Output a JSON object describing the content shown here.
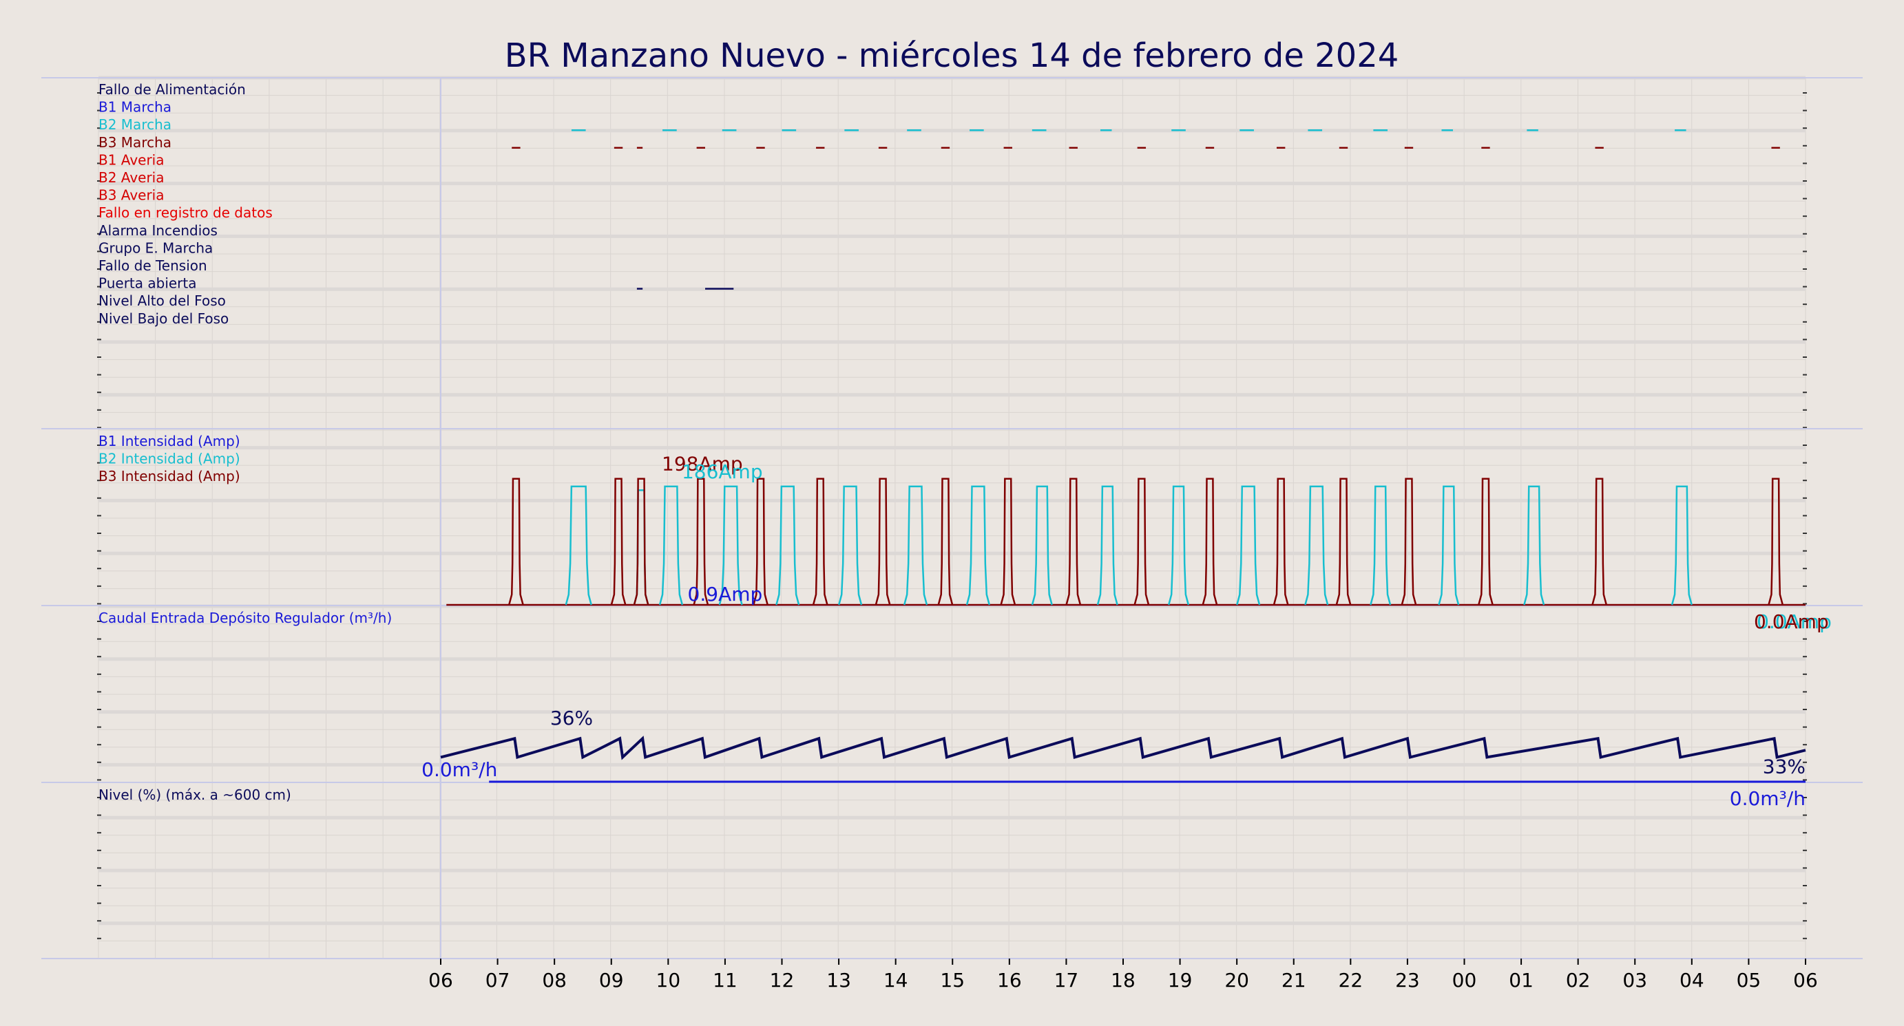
{
  "title": "BR Manzano Nuevo   -   miércoles 14 de febrero de 2024",
  "colors": {
    "background": "#ebe6e1",
    "grid": "#d9d4d0",
    "separator": "#c7c9e8",
    "navy": "#0b0b5a",
    "blue": "#1a1ad8",
    "cyan": "#17becf",
    "dark_red": "#800000",
    "red": "#d40000"
  },
  "chart_data": [
    {
      "panel": "digital_signals",
      "type": "line",
      "legend": [
        {
          "label": "Fallo de Alimentación",
          "color": "#0b0b5a"
        },
        {
          "label": "B1 Marcha",
          "color": "#1a1ad8"
        },
        {
          "label": "B2 Marcha",
          "color": "#17becf"
        },
        {
          "label": "B3 Marcha",
          "color": "#800000"
        },
        {
          "label": "B1 Averia",
          "color": "#d40000"
        },
        {
          "label": "B2 Averia",
          "color": "#d40000"
        },
        {
          "label": "B3 Averia",
          "color": "#d40000"
        },
        {
          "label": "Fallo en registro de datos",
          "color": "#e60000"
        },
        {
          "label": "Alarma Incendios",
          "color": "#0b0b5a"
        },
        {
          "label": "Grupo E. Marcha",
          "color": "#0b0b5a"
        },
        {
          "label": "Fallo de Tension",
          "color": "#0b0b5a"
        },
        {
          "label": "Puerta abierta",
          "color": "#0b0b5a"
        },
        {
          "label": "Nivel Alto del Foso",
          "color": "#0b0b5a"
        },
        {
          "label": "Nivel Bajo del Foso",
          "color": "#0b0b5a"
        }
      ],
      "events": {
        "B2 Marcha": [
          [
            8.3,
            8.55
          ],
          [
            9.9,
            10.15
          ],
          [
            10.95,
            11.2
          ],
          [
            12.0,
            12.25
          ],
          [
            13.1,
            13.35
          ],
          [
            14.2,
            14.45
          ],
          [
            15.3,
            15.55
          ],
          [
            16.4,
            16.65
          ],
          [
            17.6,
            17.8
          ],
          [
            18.85,
            19.1
          ],
          [
            20.05,
            20.3
          ],
          [
            21.25,
            21.5
          ],
          [
            22.4,
            22.65
          ],
          [
            23.6,
            23.8
          ],
          [
            25.1,
            25.3
          ],
          [
            27.7,
            27.9
          ]
        ],
        "B3 Marcha": [
          [
            7.25,
            7.4
          ],
          [
            9.05,
            9.2
          ],
          [
            9.45,
            9.55
          ],
          [
            10.5,
            10.65
          ],
          [
            11.55,
            11.7
          ],
          [
            12.6,
            12.75
          ],
          [
            13.7,
            13.85
          ],
          [
            14.8,
            14.95
          ],
          [
            15.9,
            16.05
          ],
          [
            17.05,
            17.2
          ],
          [
            18.25,
            18.4
          ],
          [
            19.45,
            19.6
          ],
          [
            20.7,
            20.85
          ],
          [
            21.8,
            21.95
          ],
          [
            22.95,
            23.1
          ],
          [
            24.3,
            24.45
          ],
          [
            26.3,
            26.45
          ],
          [
            29.4,
            29.55
          ]
        ],
        "Puerta abierta": [
          [
            9.45,
            9.55
          ],
          [
            10.65,
            11.15
          ]
        ]
      }
    },
    {
      "panel": "intensity",
      "type": "line",
      "legend": [
        {
          "label": "B1 Intensidad (Amp)",
          "color": "#1a1ad8"
        },
        {
          "label": "B2 Intensidad (Amp)",
          "color": "#17becf"
        },
        {
          "label": "B3 Intensidad (Amp)",
          "color": "#800000"
        }
      ],
      "ylim": [
        0,
        215
      ],
      "series": [
        {
          "name": "B2 Intensidad (Amp)",
          "color": "#17becf",
          "pulses": [
            [
              8.25,
              8.6,
              186
            ],
            [
              9.45,
              9.6,
              180
            ],
            [
              9.9,
              10.2,
              186
            ],
            [
              10.95,
              11.25,
              186
            ],
            [
              11.95,
              12.25,
              186
            ],
            [
              13.05,
              13.35,
              186
            ],
            [
              14.2,
              14.5,
              186
            ],
            [
              15.3,
              15.6,
              186
            ],
            [
              16.45,
              16.7,
              186
            ],
            [
              17.6,
              17.85,
              186
            ],
            [
              18.85,
              19.1,
              186
            ],
            [
              20.05,
              20.35,
              186
            ],
            [
              21.25,
              21.55,
              186
            ],
            [
              22.4,
              22.65,
              186
            ],
            [
              23.6,
              23.85,
              186
            ],
            [
              25.1,
              25.35,
              186
            ],
            [
              27.7,
              27.95,
              186
            ]
          ]
        },
        {
          "name": "B3 Intensidad (Amp)",
          "color": "#800000",
          "pulses": [
            [
              7.25,
              7.4,
              198
            ],
            [
              9.05,
              9.2,
              198
            ],
            [
              9.45,
              9.6,
              198
            ],
            [
              10.5,
              10.65,
              198
            ],
            [
              11.55,
              11.7,
              198
            ],
            [
              12.6,
              12.75,
              198
            ],
            [
              13.7,
              13.85,
              198
            ],
            [
              14.8,
              14.95,
              198
            ],
            [
              15.9,
              16.05,
              198
            ],
            [
              17.05,
              17.2,
              198
            ],
            [
              18.25,
              18.4,
              198
            ],
            [
              19.45,
              19.6,
              198
            ],
            [
              20.7,
              20.85,
              198
            ],
            [
              21.8,
              21.95,
              198
            ],
            [
              22.95,
              23.1,
              198
            ],
            [
              24.3,
              24.45,
              198
            ],
            [
              26.3,
              26.45,
              198
            ],
            [
              29.4,
              29.55,
              198
            ]
          ]
        },
        {
          "name": "B1 Intensidad (Amp)",
          "color": "#1a1ad8",
          "pulses": []
        }
      ],
      "annotations": [
        {
          "text": "198Amp",
          "x": 10.6,
          "y": 198,
          "color": "#800000"
        },
        {
          "text": "186Amp",
          "x": 10.95,
          "y": 186,
          "color": "#17becf"
        },
        {
          "text": "0.9Amp",
          "x": 11.0,
          "y": 0.9,
          "color": "#1a1ad8"
        },
        {
          "text": "0.0Amp",
          "x": 29.8,
          "y": 0,
          "color": "#17becf"
        },
        {
          "text": "0.0Amp",
          "x": 29.75,
          "y": 0,
          "color": "#800000"
        }
      ]
    },
    {
      "panel": "flow",
      "type": "line",
      "legend": [
        {
          "label": "Caudal Entrada Depósito Regulador (m³/h)",
          "color": "#1a1ad8"
        }
      ],
      "series": [
        {
          "name": "Caudal Entrada Depósito Regulador (m³/h)",
          "color": "#1a1ad8",
          "x": [
            6.85,
            30.0
          ],
          "y": [
            0,
            0
          ]
        }
      ],
      "annotations": [
        {
          "text": "0.0m³/h",
          "x": 6.15,
          "y": 0,
          "color": "#1a1ad8",
          "anchor": "end"
        },
        {
          "text": "0.0m³/h",
          "x": 30.0,
          "y": 0,
          "color": "#1a1ad8",
          "anchor": "end",
          "below": true
        }
      ]
    },
    {
      "panel": "level",
      "type": "line",
      "legend": [
        {
          "label": "Nivel (%) (máx. a ~600 cm)",
          "color": "#0b0b5a"
        }
      ],
      "ylim": [
        0,
        100
      ],
      "series": [
        {
          "name": "Nivel (%)",
          "color": "#0b0b5a",
          "teeth_end_x": [
            7.3,
            8.45,
            9.15,
            9.55,
            10.6,
            11.6,
            12.65,
            13.75,
            14.85,
            15.95,
            17.1,
            18.3,
            19.5,
            20.75,
            21.85,
            23.0,
            24.35,
            26.35,
            27.75,
            29.45
          ],
          "low": 32,
          "high": 36
        }
      ],
      "annotations": [
        {
          "text": "36%",
          "x": 8.3,
          "y": 36,
          "color": "#0b0b5a"
        },
        {
          "text": "33%",
          "x": 30.0,
          "y": 33,
          "color": "#0b0b5a",
          "anchor": "end"
        }
      ]
    }
  ],
  "x_axis": {
    "range": [
      0,
      30
    ],
    "tick_labels": [
      "06",
      "07",
      "08",
      "09",
      "10",
      "11",
      "12",
      "13",
      "14",
      "15",
      "16",
      "17",
      "18",
      "19",
      "20",
      "21",
      "22",
      "23",
      "00",
      "01",
      "02",
      "03",
      "04",
      "05",
      "06"
    ],
    "tick_start": 6
  }
}
